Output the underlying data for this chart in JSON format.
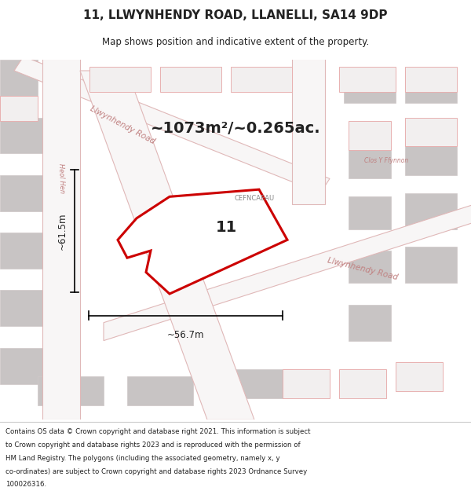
{
  "title_line1": "11, LLWYNHENDY ROAD, LLANELLI, SA14 9DP",
  "title_line2": "Map shows position and indicative extent of the property.",
  "area_text": "~1073m²/~0.265ac.",
  "label_number": "11",
  "label_road": "CEFNCAEAU",
  "label_road2": "Llwynhendy Road",
  "label_road3": "Llwynhendy Road",
  "label_road4": "Llwynhendy Road",
  "label_heolhen": "Heol Hen",
  "label_clos": "Clos Y Ffynnon",
  "dim_width": "~56.7m",
  "dim_height": "~61.5m",
  "footer_lines": [
    "Contains OS data © Crown copyright and database right 2021. This information is subject",
    "to Crown copyright and database rights 2023 and is reproduced with the permission of",
    "HM Land Registry. The polygons (including the associated geometry, namely x, y",
    "co-ordinates) are subject to Crown copyright and database rights 2023 Ordnance Survey",
    "100026316."
  ],
  "map_bg": "#f2efef",
  "road_fill": "#f8f6f6",
  "road_edge": "#e0b8b8",
  "block_fill": "#c8c4c4",
  "block_edge": "#d0c8c8",
  "plot_fill": "#f2efef",
  "plot_edge": "#e8b0b0",
  "property_fill": "#ffffff",
  "property_edge": "#cc0000",
  "title_bg": "#ffffff",
  "footer_bg": "#ffffff",
  "text_color": "#222222",
  "road_text_color": "#c08080",
  "gray_text_color": "#888888"
}
